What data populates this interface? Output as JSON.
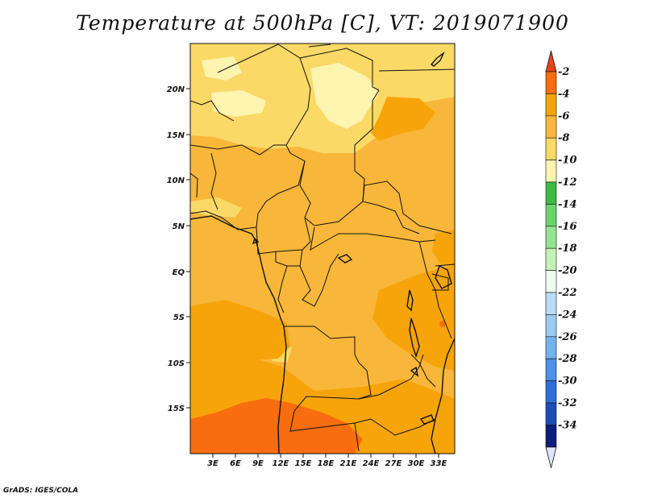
{
  "title": "Temperature at 500hPa [C], VT: 2019071900",
  "credit": "GrADS: IGES/COLA",
  "map": {
    "variable": "Temperature at 500hPa",
    "units": "C",
    "valid_time": "2019071900",
    "lat_labels": [
      "20N",
      "15N",
      "10N",
      "5N",
      "EQ",
      "5S",
      "10S",
      "15S"
    ],
    "lon_labels": [
      "3E",
      "6E",
      "9E",
      "12E",
      "15E",
      "18E",
      "21E",
      "24E",
      "27E",
      "30E",
      "33E"
    ]
  },
  "colorbar": {
    "labels": [
      "-2",
      "-4",
      "-6",
      "-8",
      "-10",
      "-12",
      "-14",
      "-16",
      "-18",
      "-20",
      "-22",
      "-24",
      "-26",
      "-28",
      "-30",
      "-32",
      "-34"
    ],
    "colors": [
      "#f76d10",
      "#f7a40a",
      "#f8b73a",
      "#fad967",
      "#fff4b0",
      "#3cba45",
      "#6ad46b",
      "#94e38d",
      "#c4f2b4",
      "#eefcef",
      "#b8dcf6",
      "#9ccbf1",
      "#74b2ee",
      "#4b92e8",
      "#2e6fd9",
      "#1c4db5",
      "#0d1d7a"
    ],
    "top_arrow_color": "#e8421a",
    "bottom_arrow_color": "#dfe6ff"
  },
  "palette": {
    "field_base": "#f8b73a",
    "warm": "#f7a40a",
    "hot": "#f76d10",
    "light": "#fad967",
    "pale": "#fff4b0"
  }
}
